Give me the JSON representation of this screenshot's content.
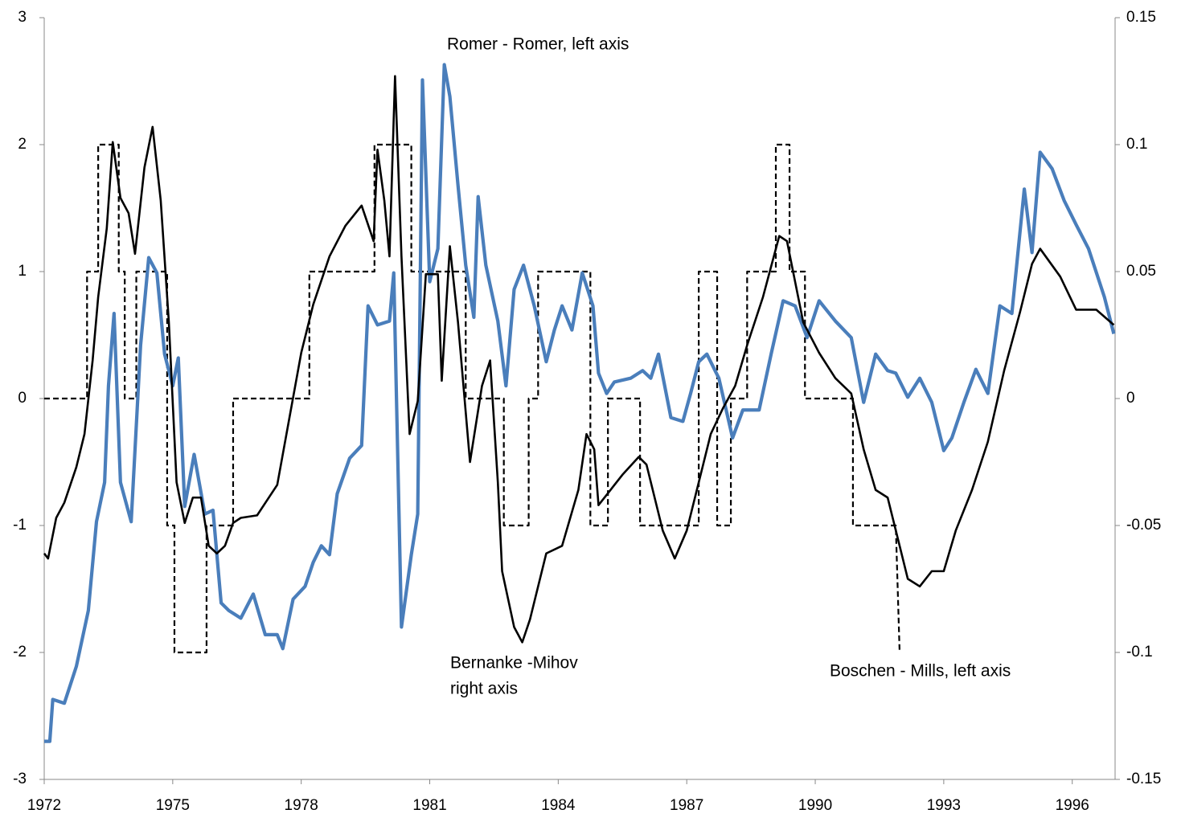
{
  "chart_data": {
    "type": "line",
    "annotations": [
      "Romer - Romer, left axis",
      "Bernanke -Mihov",
      "right axis",
      "Boschen - Mills, left axis"
    ],
    "xlim": [
      1972,
      1997
    ],
    "xticks": [
      1972,
      1975,
      1978,
      1981,
      1984,
      1987,
      1990,
      1993,
      1996
    ],
    "ylim": [
      -3,
      3
    ],
    "yticks": [
      -3,
      -2,
      -1,
      0,
      1,
      2,
      3
    ],
    "y2lim": [
      -0.15,
      0.15
    ],
    "y2ticks": [
      -0.15,
      -0.1,
      -0.05,
      0,
      0.05,
      0.1,
      0.15
    ],
    "grid": false,
    "series": [
      {
        "name": "Boschen - Mills",
        "color": "#000000",
        "style": "dashed",
        "axis": "y",
        "x": [
          1972,
          1973,
          1973,
          1973.26,
          1973.26,
          1973.74,
          1973.74,
          1973.88,
          1973.88,
          1974.15,
          1974.15,
          1974.87,
          1974.87,
          1975.04,
          1975.04,
          1975.79,
          1975.79,
          1976.41,
          1976.41,
          1978.19,
          1978.19,
          1979.71,
          1979.71,
          1980.57,
          1980.57,
          1981.84,
          1981.84,
          1982.73,
          1982.73,
          1983.31,
          1983.31,
          1983.53,
          1983.53,
          1984.75,
          1984.75,
          1985.16,
          1985.16,
          1985.91,
          1985.91,
          1987.28,
          1987.28,
          1987.71,
          1987.71,
          1988.03,
          1988.03,
          1988.41,
          1988.41,
          1989.08,
          1989.08,
          1989.4,
          1989.4,
          1989.76,
          1989.76,
          1990.88,
          1990.88,
          1991.88,
          1991.97
        ],
        "values": [
          0,
          0,
          1,
          1,
          2,
          2,
          1,
          1,
          0,
          0,
          1,
          1,
          -1,
          -1,
          -2,
          -2,
          -1,
          -1,
          0,
          0,
          1,
          1,
          2,
          2,
          1,
          1,
          0,
          0,
          -1,
          -1,
          0,
          0,
          1,
          1,
          -1,
          -1,
          0,
          0,
          -1,
          -1,
          1,
          1,
          -1,
          -1,
          0,
          0,
          1,
          1,
          2,
          2,
          1,
          1,
          0,
          0,
          -1,
          -1,
          -2
        ]
      },
      {
        "name": "Romer - Romer",
        "color": "#4a7ebb",
        "style": "solid",
        "axis": "y",
        "x": [
          1972,
          1972.13,
          1972.2,
          1972.47,
          1972.75,
          1973.03,
          1973.22,
          1973.41,
          1973.5,
          1973.63,
          1973.78,
          1974.03,
          1974.25,
          1974.44,
          1974.63,
          1974.81,
          1975,
          1975.13,
          1975.28,
          1975.5,
          1975.75,
          1975.94,
          1976.13,
          1976.31,
          1976.59,
          1976.88,
          1977.16,
          1977.44,
          1977.57,
          1977.81,
          1978.09,
          1978.28,
          1978.47,
          1978.66,
          1978.84,
          1979.13,
          1979.41,
          1979.56,
          1979.78,
          1980.06,
          1980.16,
          1980.34,
          1980.57,
          1980.72,
          1980.83,
          1981,
          1981.19,
          1981.34,
          1981.47,
          1981.66,
          1981.84,
          1982.03,
          1982.13,
          1982.31,
          1982.59,
          1982.78,
          1982.97,
          1983.19,
          1983.44,
          1983.72,
          1983.91,
          1984.09,
          1984.32,
          1984.56,
          1984.81,
          1984.94,
          1985.13,
          1985.31,
          1985.69,
          1985.97,
          1986.16,
          1986.34,
          1986.63,
          1986.91,
          1987.09,
          1987.28,
          1987.47,
          1987.75,
          1988.07,
          1988.31,
          1988.69,
          1988.97,
          1989.25,
          1989.53,
          1989.81,
          1990.09,
          1990.47,
          1990.84,
          1991.13,
          1991.41,
          1991.69,
          1991.88,
          1992.16,
          1992.44,
          1992.72,
          1993,
          1993.19,
          1993.47,
          1993.75,
          1994.03,
          1994.31,
          1994.59,
          1994.88,
          1995.06,
          1995.25,
          1995.53,
          1995.81,
          1996.09,
          1996.38,
          1996.75,
          1996.97
        ],
        "values": [
          -2.7,
          -2.7,
          -2.37,
          -2.4,
          -2.11,
          -1.67,
          -0.97,
          -0.66,
          0.1,
          0.67,
          -0.66,
          -0.97,
          0.42,
          1.11,
          0.99,
          0.35,
          0.1,
          0.32,
          -0.85,
          -0.44,
          -0.91,
          -0.88,
          -1.61,
          -1.67,
          -1.73,
          -1.54,
          -1.86,
          -1.86,
          -1.97,
          -1.58,
          -1.48,
          -1.29,
          -1.16,
          -1.23,
          -0.75,
          -0.47,
          -0.37,
          0.73,
          0.58,
          0.61,
          0.99,
          -1.8,
          -1.23,
          -0.91,
          2.51,
          0.92,
          1.18,
          2.63,
          2.38,
          1.68,
          1.05,
          0.64,
          1.59,
          1.05,
          0.61,
          0.1,
          0.86,
          1.05,
          0.73,
          0.29,
          0.54,
          0.73,
          0.54,
          0.99,
          0.73,
          0.2,
          0.04,
          0.13,
          0.16,
          0.22,
          0.16,
          0.35,
          -0.15,
          -0.18,
          0.04,
          0.29,
          0.35,
          0.16,
          -0.31,
          -0.09,
          -0.09,
          0.35,
          0.77,
          0.73,
          0.48,
          0.77,
          0.61,
          0.48,
          -0.03,
          0.35,
          0.22,
          0.2,
          0.01,
          0.16,
          -0.03,
          -0.41,
          -0.31,
          -0.03,
          0.23,
          0.04,
          0.73,
          0.67,
          1.65,
          1.15,
          1.94,
          1.81,
          1.56,
          1.37,
          1.18,
          0.8,
          0.51
        ]
      },
      {
        "name": "Bernanke-Mihov",
        "color": "#000000",
        "style": "solid",
        "axis": "y2",
        "x": [
          1972,
          1972.09,
          1972.28,
          1972.47,
          1972.75,
          1972.94,
          1973.13,
          1973.26,
          1973.46,
          1973.6,
          1973.78,
          1973.97,
          1974.12,
          1974.34,
          1974.53,
          1974.72,
          1974.91,
          1975.09,
          1975.28,
          1975.47,
          1975.66,
          1975.84,
          1976.03,
          1976.22,
          1976.41,
          1976.59,
          1976.97,
          1977.44,
          1977.72,
          1978,
          1978.28,
          1978.66,
          1979.03,
          1979.41,
          1979.69,
          1979.78,
          1979.94,
          1980.06,
          1980.19,
          1980.34,
          1980.53,
          1980.72,
          1980.91,
          1981.19,
          1981.28,
          1981.47,
          1981.66,
          1981.94,
          1982.22,
          1982.41,
          1982.59,
          1982.69,
          1982.97,
          1983.16,
          1983.34,
          1983.72,
          1984.09,
          1984.47,
          1984.66,
          1984.84,
          1984.94,
          1985.22,
          1985.5,
          1985.88,
          1986.06,
          1986.44,
          1986.72,
          1987,
          1987.28,
          1987.56,
          1987.84,
          1988.13,
          1988.41,
          1988.78,
          1989.16,
          1989.34,
          1989.72,
          1990.09,
          1990.47,
          1990.84,
          1991.13,
          1991.41,
          1991.69,
          1991.97,
          1992.16,
          1992.44,
          1992.72,
          1993,
          1993.28,
          1993.66,
          1994.03,
          1994.41,
          1994.78,
          1995.06,
          1995.25,
          1995.72,
          1996.09,
          1996.56,
          1996.97
        ],
        "values": [
          -0.061,
          -0.063,
          -0.047,
          -0.041,
          -0.027,
          -0.014,
          0.015,
          0.04,
          0.067,
          0.101,
          0.079,
          0.073,
          0.057,
          0.091,
          0.107,
          0.078,
          0.03,
          -0.033,
          -0.049,
          -0.039,
          -0.039,
          -0.058,
          -0.061,
          -0.058,
          -0.049,
          -0.047,
          -0.046,
          -0.034,
          -0.008,
          0.018,
          0.037,
          0.056,
          0.068,
          0.076,
          0.062,
          0.098,
          0.078,
          0.056,
          0.127,
          0.056,
          -0.014,
          -0.001,
          0.049,
          0.049,
          0.007,
          0.06,
          0.03,
          -0.025,
          0.005,
          0.015,
          -0.033,
          -0.068,
          -0.09,
          -0.096,
          -0.087,
          -0.061,
          -0.058,
          -0.036,
          -0.014,
          -0.02,
          -0.042,
          -0.036,
          -0.03,
          -0.023,
          -0.026,
          -0.052,
          -0.063,
          -0.052,
          -0.033,
          -0.014,
          -0.004,
          0.005,
          0.021,
          0.04,
          0.064,
          0.062,
          0.03,
          0.018,
          0.008,
          0.002,
          -0.02,
          -0.036,
          -0.039,
          -0.058,
          -0.071,
          -0.074,
          -0.068,
          -0.068,
          -0.052,
          -0.036,
          -0.017,
          0.011,
          0.034,
          0.053,
          0.059,
          0.048,
          0.035,
          0.035,
          0.029
        ]
      }
    ]
  }
}
